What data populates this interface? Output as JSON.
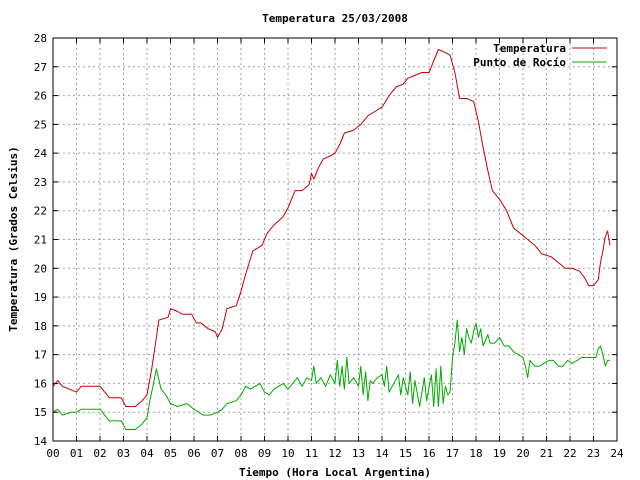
{
  "chart_data": {
    "type": "line",
    "title": "Temperatura 25/03/2008",
    "xlabel": "Tiempo (Hora Local Argentina)",
    "ylabel": "Temperatura (Grados Celsius)",
    "xlim": [
      0,
      24
    ],
    "ylim": [
      14,
      28
    ],
    "grid": true,
    "legend_position": "top-right",
    "x_ticks": [
      {
        "value": 0,
        "label": "00"
      },
      {
        "value": 1,
        "label": "01"
      },
      {
        "value": 2,
        "label": "02"
      },
      {
        "value": 3,
        "label": "03"
      },
      {
        "value": 4,
        "label": "04"
      },
      {
        "value": 5,
        "label": "05"
      },
      {
        "value": 6,
        "label": "06"
      },
      {
        "value": 7,
        "label": "07"
      },
      {
        "value": 8,
        "label": "08"
      },
      {
        "value": 9,
        "label": "09"
      },
      {
        "value": 10,
        "label": "10"
      },
      {
        "value": 11,
        "label": "11"
      },
      {
        "value": 12,
        "label": "12"
      },
      {
        "value": 13,
        "label": "13"
      },
      {
        "value": 14,
        "label": "14"
      },
      {
        "value": 15,
        "label": "15"
      },
      {
        "value": 16,
        "label": "16"
      },
      {
        "value": 17,
        "label": "17"
      },
      {
        "value": 18,
        "label": "18"
      },
      {
        "value": 19,
        "label": "19"
      },
      {
        "value": 20,
        "label": "20"
      },
      {
        "value": 21,
        "label": "21"
      },
      {
        "value": 22,
        "label": "22"
      },
      {
        "value": 23,
        "label": "23"
      },
      {
        "value": 24,
        "label": "24"
      }
    ],
    "y_ticks": [
      14,
      15,
      16,
      17,
      18,
      19,
      20,
      21,
      22,
      23,
      24,
      25,
      26,
      27,
      28
    ],
    "series": [
      {
        "name": "Temperatura",
        "color": "#cc0000",
        "points": [
          [
            0.0,
            15.9
          ],
          [
            0.2,
            16.1
          ],
          [
            0.4,
            15.9
          ],
          [
            0.7,
            15.8
          ],
          [
            1.0,
            15.7
          ],
          [
            1.2,
            15.9
          ],
          [
            1.5,
            15.9
          ],
          [
            2.0,
            15.9
          ],
          [
            2.4,
            15.5
          ],
          [
            2.9,
            15.5
          ],
          [
            3.1,
            15.2
          ],
          [
            3.5,
            15.2
          ],
          [
            3.8,
            15.4
          ],
          [
            4.0,
            15.6
          ],
          [
            4.2,
            16.5
          ],
          [
            4.4,
            17.6
          ],
          [
            4.5,
            18.2
          ],
          [
            4.9,
            18.3
          ],
          [
            5.0,
            18.6
          ],
          [
            5.3,
            18.5
          ],
          [
            5.5,
            18.4
          ],
          [
            5.9,
            18.4
          ],
          [
            6.1,
            18.1
          ],
          [
            6.3,
            18.1
          ],
          [
            6.6,
            17.9
          ],
          [
            6.9,
            17.8
          ],
          [
            7.0,
            17.6
          ],
          [
            7.2,
            17.9
          ],
          [
            7.4,
            18.6
          ],
          [
            7.8,
            18.7
          ],
          [
            8.0,
            19.2
          ],
          [
            8.2,
            19.8
          ],
          [
            8.5,
            20.6
          ],
          [
            8.9,
            20.8
          ],
          [
            9.1,
            21.2
          ],
          [
            9.4,
            21.5
          ],
          [
            9.8,
            21.8
          ],
          [
            10.0,
            22.1
          ],
          [
            10.3,
            22.7
          ],
          [
            10.6,
            22.7
          ],
          [
            10.9,
            22.9
          ],
          [
            11.0,
            23.3
          ],
          [
            11.1,
            23.1
          ],
          [
            11.3,
            23.5
          ],
          [
            11.5,
            23.8
          ],
          [
            11.8,
            23.9
          ],
          [
            12.0,
            24.0
          ],
          [
            12.2,
            24.3
          ],
          [
            12.4,
            24.7
          ],
          [
            12.8,
            24.8
          ],
          [
            13.1,
            25.0
          ],
          [
            13.4,
            25.3
          ],
          [
            13.8,
            25.5
          ],
          [
            14.0,
            25.6
          ],
          [
            14.3,
            26.0
          ],
          [
            14.6,
            26.3
          ],
          [
            14.9,
            26.4
          ],
          [
            15.1,
            26.6
          ],
          [
            15.4,
            26.7
          ],
          [
            15.7,
            26.8
          ],
          [
            16.0,
            26.8
          ],
          [
            16.2,
            27.2
          ],
          [
            16.4,
            27.6
          ],
          [
            16.7,
            27.5
          ],
          [
            16.9,
            27.4
          ],
          [
            17.1,
            26.8
          ],
          [
            17.3,
            25.9
          ],
          [
            17.6,
            25.9
          ],
          [
            17.9,
            25.8
          ],
          [
            18.1,
            25.1
          ],
          [
            18.3,
            24.2
          ],
          [
            18.5,
            23.4
          ],
          [
            18.7,
            22.7
          ],
          [
            19.0,
            22.4
          ],
          [
            19.3,
            22.0
          ],
          [
            19.6,
            21.4
          ],
          [
            19.9,
            21.2
          ],
          [
            20.2,
            21.0
          ],
          [
            20.5,
            20.8
          ],
          [
            20.8,
            20.5
          ],
          [
            21.2,
            20.4
          ],
          [
            21.5,
            20.2
          ],
          [
            21.8,
            20.0
          ],
          [
            22.1,
            20.0
          ],
          [
            22.4,
            19.9
          ],
          [
            22.6,
            19.7
          ],
          [
            22.8,
            19.4
          ],
          [
            23.0,
            19.4
          ],
          [
            23.2,
            19.6
          ],
          [
            23.3,
            20.2
          ],
          [
            23.4,
            20.6
          ],
          [
            23.5,
            21.1
          ],
          [
            23.6,
            21.3
          ],
          [
            23.7,
            20.8
          ]
        ]
      },
      {
        "name": "Punto de Rocío",
        "color": "#00aa00",
        "points": [
          [
            0.0,
            15.0
          ],
          [
            0.2,
            15.1
          ],
          [
            0.4,
            14.9
          ],
          [
            0.8,
            15.0
          ],
          [
            1.0,
            15.0
          ],
          [
            1.2,
            15.1
          ],
          [
            1.5,
            15.1
          ],
          [
            2.0,
            15.1
          ],
          [
            2.4,
            14.7
          ],
          [
            2.9,
            14.7
          ],
          [
            3.1,
            14.4
          ],
          [
            3.5,
            14.4
          ],
          [
            3.8,
            14.6
          ],
          [
            4.0,
            14.8
          ],
          [
            4.1,
            15.3
          ],
          [
            4.3,
            16.1
          ],
          [
            4.4,
            16.5
          ],
          [
            4.6,
            15.8
          ],
          [
            4.8,
            15.6
          ],
          [
            5.0,
            15.3
          ],
          [
            5.3,
            15.2
          ],
          [
            5.7,
            15.3
          ],
          [
            6.0,
            15.1
          ],
          [
            6.2,
            15.0
          ],
          [
            6.4,
            14.9
          ],
          [
            6.7,
            14.9
          ],
          [
            7.0,
            15.0
          ],
          [
            7.2,
            15.1
          ],
          [
            7.4,
            15.3
          ],
          [
            7.8,
            15.4
          ],
          [
            8.0,
            15.6
          ],
          [
            8.2,
            15.9
          ],
          [
            8.4,
            15.8
          ],
          [
            8.6,
            15.9
          ],
          [
            8.8,
            16.0
          ],
          [
            9.0,
            15.7
          ],
          [
            9.2,
            15.6
          ],
          [
            9.4,
            15.8
          ],
          [
            9.6,
            15.9
          ],
          [
            9.8,
            16.0
          ],
          [
            10.0,
            15.8
          ],
          [
            10.2,
            16.0
          ],
          [
            10.4,
            16.2
          ],
          [
            10.6,
            15.9
          ],
          [
            10.8,
            16.2
          ],
          [
            11.0,
            16.1
          ],
          [
            11.1,
            16.6
          ],
          [
            11.2,
            16.0
          ],
          [
            11.4,
            16.2
          ],
          [
            11.6,
            15.9
          ],
          [
            11.8,
            16.3
          ],
          [
            12.0,
            16.0
          ],
          [
            12.1,
            16.8
          ],
          [
            12.2,
            15.9
          ],
          [
            12.3,
            16.6
          ],
          [
            12.4,
            15.8
          ],
          [
            12.5,
            16.9
          ],
          [
            12.6,
            16.0
          ],
          [
            12.8,
            16.2
          ],
          [
            13.0,
            15.9
          ],
          [
            13.1,
            16.6
          ],
          [
            13.2,
            15.6
          ],
          [
            13.3,
            16.4
          ],
          [
            13.4,
            15.4
          ],
          [
            13.5,
            16.1
          ],
          [
            13.6,
            16.0
          ],
          [
            13.8,
            16.2
          ],
          [
            14.0,
            16.3
          ],
          [
            14.1,
            15.9
          ],
          [
            14.2,
            16.6
          ],
          [
            14.3,
            15.7
          ],
          [
            14.5,
            16.0
          ],
          [
            14.7,
            16.3
          ],
          [
            14.8,
            15.6
          ],
          [
            14.9,
            16.2
          ],
          [
            15.1,
            15.6
          ],
          [
            15.2,
            16.4
          ],
          [
            15.3,
            15.3
          ],
          [
            15.4,
            16.1
          ],
          [
            15.6,
            15.2
          ],
          [
            15.8,
            16.2
          ],
          [
            15.9,
            15.4
          ],
          [
            16.1,
            16.3
          ],
          [
            16.2,
            15.2
          ],
          [
            16.3,
            16.5
          ],
          [
            16.4,
            15.2
          ],
          [
            16.5,
            16.6
          ],
          [
            16.6,
            15.3
          ],
          [
            16.7,
            15.9
          ],
          [
            16.8,
            15.6
          ],
          [
            16.9,
            15.7
          ],
          [
            17.0,
            16.9
          ],
          [
            17.1,
            17.4
          ],
          [
            17.2,
            18.2
          ],
          [
            17.3,
            17.1
          ],
          [
            17.4,
            17.6
          ],
          [
            17.5,
            17.0
          ],
          [
            17.6,
            17.9
          ],
          [
            17.7,
            17.6
          ],
          [
            17.8,
            17.4
          ],
          [
            17.9,
            17.8
          ],
          [
            18.0,
            18.1
          ],
          [
            18.1,
            17.6
          ],
          [
            18.2,
            17.9
          ],
          [
            18.3,
            17.3
          ],
          [
            18.5,
            17.7
          ],
          [
            18.6,
            17.4
          ],
          [
            18.8,
            17.4
          ],
          [
            19.0,
            17.6
          ],
          [
            19.2,
            17.3
          ],
          [
            19.4,
            17.3
          ],
          [
            19.6,
            17.1
          ],
          [
            19.8,
            17.0
          ],
          [
            20.0,
            16.9
          ],
          [
            20.1,
            16.6
          ],
          [
            20.2,
            16.2
          ],
          [
            20.3,
            16.8
          ],
          [
            20.5,
            16.6
          ],
          [
            20.7,
            16.6
          ],
          [
            20.9,
            16.7
          ],
          [
            21.1,
            16.8
          ],
          [
            21.3,
            16.8
          ],
          [
            21.5,
            16.6
          ],
          [
            21.7,
            16.6
          ],
          [
            21.9,
            16.8
          ],
          [
            22.1,
            16.7
          ],
          [
            22.3,
            16.8
          ],
          [
            22.5,
            16.9
          ],
          [
            22.7,
            16.9
          ],
          [
            22.9,
            16.9
          ],
          [
            23.1,
            16.9
          ],
          [
            23.2,
            17.2
          ],
          [
            23.3,
            17.3
          ],
          [
            23.4,
            17.0
          ],
          [
            23.5,
            16.6
          ],
          [
            23.6,
            16.8
          ],
          [
            23.7,
            16.8
          ]
        ]
      }
    ]
  }
}
